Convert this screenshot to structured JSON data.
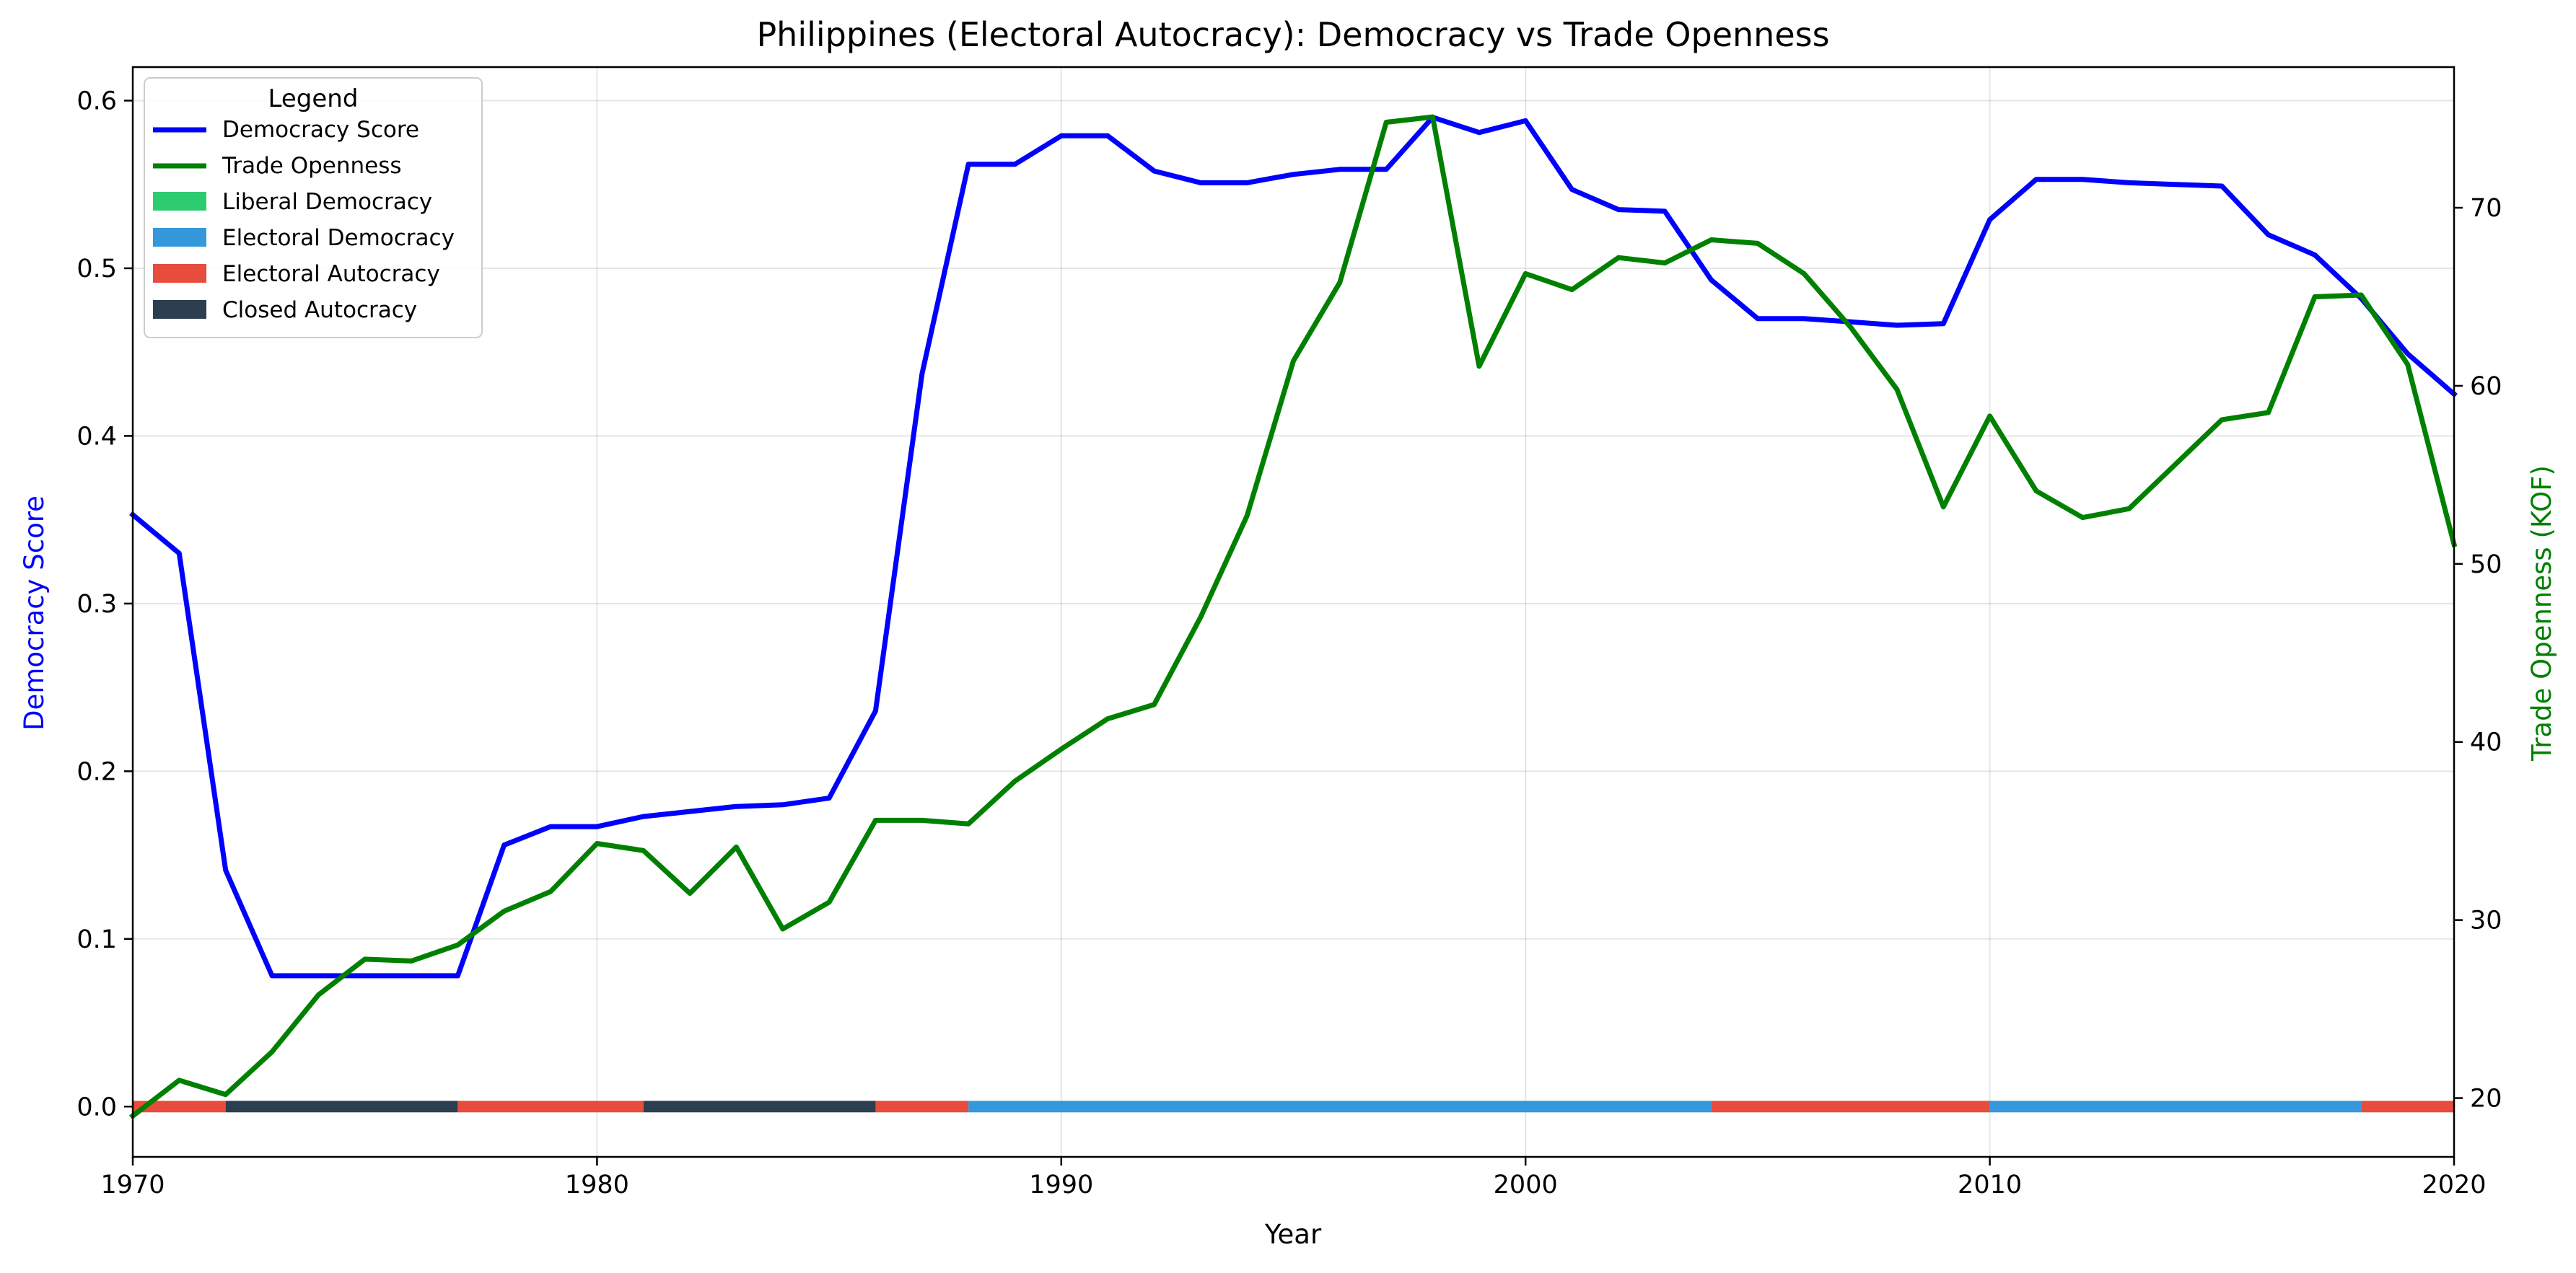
{
  "chart_data": {
    "type": "line",
    "title": "Philippines (Electoral Autocracy): Democracy vs Trade Openness",
    "xlabel": "Year",
    "ylabel_left": "Democracy Score",
    "ylabel_right": "Trade Openness (KOF)",
    "xlim": [
      1970,
      2020
    ],
    "ylim_left": [
      -0.03,
      0.62
    ],
    "ylim_right": [
      16.7,
      77.9
    ],
    "x_ticks": [
      "1970",
      "1980",
      "1990",
      "2000",
      "2010",
      "2020"
    ],
    "y_ticks_left": [
      "0.0",
      "0.1",
      "0.2",
      "0.3",
      "0.4",
      "0.5",
      "0.6"
    ],
    "y_ticks_right": [
      "20",
      "30",
      "40",
      "50",
      "60",
      "70"
    ],
    "grid": true,
    "legend": {
      "title": "Legend",
      "placement": "top-left",
      "entries": [
        {
          "label": "Democracy Score",
          "kind": "line",
          "color": "#0000ff"
        },
        {
          "label": "Trade Openness",
          "kind": "line",
          "color": "#008000"
        },
        {
          "label": "Liberal Democracy",
          "kind": "patch",
          "color": "#2ecc71"
        },
        {
          "label": "Electoral Democracy",
          "kind": "patch",
          "color": "#3498db"
        },
        {
          "label": "Electoral Autocracy",
          "kind": "patch",
          "color": "#e74c3c"
        },
        {
          "label": "Closed Autocracy",
          "kind": "patch",
          "color": "#2c3e50"
        }
      ]
    },
    "series": [
      {
        "name": "Democracy Score",
        "axis": "left",
        "color": "#0000ff",
        "x": [
          1970,
          1971,
          1972,
          1973,
          1974,
          1975,
          1976,
          1977,
          1978,
          1979,
          1980,
          1981,
          1982,
          1983,
          1984,
          1985,
          1986,
          1987,
          1988,
          1989,
          1990,
          1991,
          1992,
          1993,
          1994,
          1995,
          1996,
          1997,
          1998,
          1999,
          2000,
          2001,
          2002,
          2003,
          2004,
          2005,
          2006,
          2007,
          2008,
          2009,
          2010,
          2011,
          2012,
          2013,
          2014,
          2015,
          2016,
          2017,
          2018,
          2019,
          2020
        ],
        "values": [
          0.353,
          0.33,
          0.141,
          0.078,
          0.078,
          0.078,
          0.078,
          0.078,
          0.156,
          0.167,
          0.167,
          0.173,
          0.176,
          0.179,
          0.18,
          0.184,
          0.236,
          0.437,
          0.562,
          0.562,
          0.579,
          0.579,
          0.558,
          0.551,
          0.551,
          0.556,
          0.559,
          0.559,
          0.59,
          0.581,
          0.588,
          0.547,
          0.535,
          0.534,
          0.493,
          0.47,
          0.47,
          0.468,
          0.466,
          0.467,
          0.529,
          0.553,
          0.553,
          0.551,
          0.55,
          0.549,
          0.52,
          0.508,
          0.482,
          0.449,
          0.425
        ]
      },
      {
        "name": "Trade Openness",
        "axis": "right",
        "color": "#008000",
        "x": [
          1970,
          1971,
          1972,
          1973,
          1974,
          1975,
          1976,
          1977,
          1978,
          1979,
          1980,
          1981,
          1982,
          1983,
          1984,
          1985,
          1986,
          1987,
          1988,
          1989,
          1990,
          1991,
          1992,
          1993,
          1994,
          1995,
          1996,
          1997,
          1998,
          1999,
          2000,
          2001,
          2002,
          2003,
          2004,
          2005,
          2006,
          2007,
          2008,
          2009,
          2010,
          2011,
          2012,
          2013,
          2014,
          2015,
          2016,
          2017,
          2018,
          2019,
          2020
        ],
        "values": [
          19.0,
          21.0,
          20.2,
          22.6,
          25.8,
          27.8,
          27.7,
          28.6,
          30.5,
          31.6,
          34.3,
          33.9,
          31.5,
          34.1,
          29.5,
          31.0,
          35.6,
          35.6,
          35.4,
          37.8,
          39.6,
          41.3,
          42.1,
          47.0,
          52.7,
          61.4,
          65.8,
          74.8,
          75.1,
          61.1,
          66.3,
          65.4,
          67.2,
          66.9,
          68.2,
          68.0,
          66.3,
          63.3,
          59.8,
          53.2,
          58.3,
          54.1,
          52.6,
          53.1,
          55.6,
          58.1,
          58.5,
          65.0,
          65.1,
          61.2,
          51.1
        ]
      }
    ],
    "regime_bands": [
      {
        "start": 1970,
        "end": 1972,
        "regime": "Electoral Autocracy",
        "color": "#e74c3c"
      },
      {
        "start": 1972,
        "end": 1977,
        "regime": "Closed Autocracy",
        "color": "#2c3e50"
      },
      {
        "start": 1977,
        "end": 1981,
        "regime": "Electoral Autocracy",
        "color": "#e74c3c"
      },
      {
        "start": 1981,
        "end": 1986,
        "regime": "Closed Autocracy",
        "color": "#2c3e50"
      },
      {
        "start": 1986,
        "end": 1988,
        "regime": "Electoral Autocracy",
        "color": "#e74c3c"
      },
      {
        "start": 1988,
        "end": 2004,
        "regime": "Electoral Democracy",
        "color": "#3498db"
      },
      {
        "start": 2004,
        "end": 2010,
        "regime": "Electoral Autocracy",
        "color": "#e74c3c"
      },
      {
        "start": 2010,
        "end": 2018,
        "regime": "Electoral Democracy",
        "color": "#3498db"
      },
      {
        "start": 2018,
        "end": 2020,
        "regime": "Electoral Autocracy",
        "color": "#e74c3c"
      }
    ]
  }
}
